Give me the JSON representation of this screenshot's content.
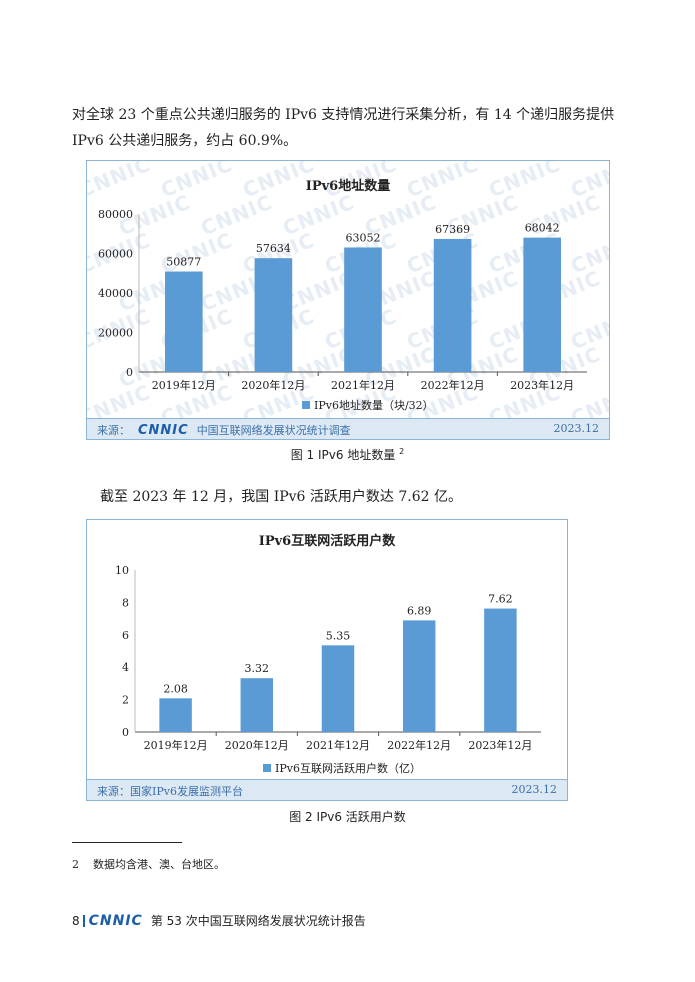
{
  "intro_text": "对全球 23 个重点公共递归服务的 IPv6 支持情况进行采集分析，有 14 个递归服务提供 IPv6 公共递归服务，约占 60.9%。",
  "watermark_text": "CNNIC",
  "chart1": {
    "source_label": "来源：",
    "source_logo": "CNNIC",
    "source_name": "中国互联网络发展状况统计调查",
    "date": "2023.12",
    "caption": "图 1 IPv6 地址数量",
    "caption_sup": "2"
  },
  "mid_text": "截至 2023 年 12 月，我国 IPv6 活跃用户数达 7.62 亿。",
  "chart2": {
    "source_label": "来源：国家IPv6发展监测平台",
    "date": "2023.12",
    "caption": "图 2 IPv6 活跃用户数"
  },
  "chart_data": [
    {
      "type": "bar",
      "title": "IPv6地址数量",
      "categories": [
        "2019年12月",
        "2020年12月",
        "2021年12月",
        "2022年12月",
        "2023年12月"
      ],
      "series": [
        {
          "name": "IPv6地址数量（块/32）",
          "values": [
            50877,
            57634,
            63052,
            67369,
            68042
          ]
        }
      ],
      "ylim": [
        0,
        80000
      ],
      "yticks": [
        0,
        20000,
        40000,
        60000,
        80000
      ],
      "legend": "bottom",
      "color": "#5b9bd5"
    },
    {
      "type": "bar",
      "title": "IPv6互联网活跃用户数",
      "categories": [
        "2019年12月",
        "2020年12月",
        "2021年12月",
        "2022年12月",
        "2023年12月"
      ],
      "series": [
        {
          "name": "IPv6互联网活跃用户数（亿）",
          "values": [
            2.08,
            3.32,
            5.35,
            6.89,
            7.62
          ]
        }
      ],
      "ylim": [
        0,
        10
      ],
      "yticks": [
        0,
        2,
        4,
        6,
        8,
        10
      ],
      "legend": "bottom",
      "color": "#5b9bd5"
    }
  ],
  "footnote": {
    "num": "2",
    "text": "数据均含港、澳、台地区。"
  },
  "page_footer": {
    "page": "8",
    "logo": "CNNIC",
    "title": "第 53 次中国互联网络发展状况统计报告"
  }
}
